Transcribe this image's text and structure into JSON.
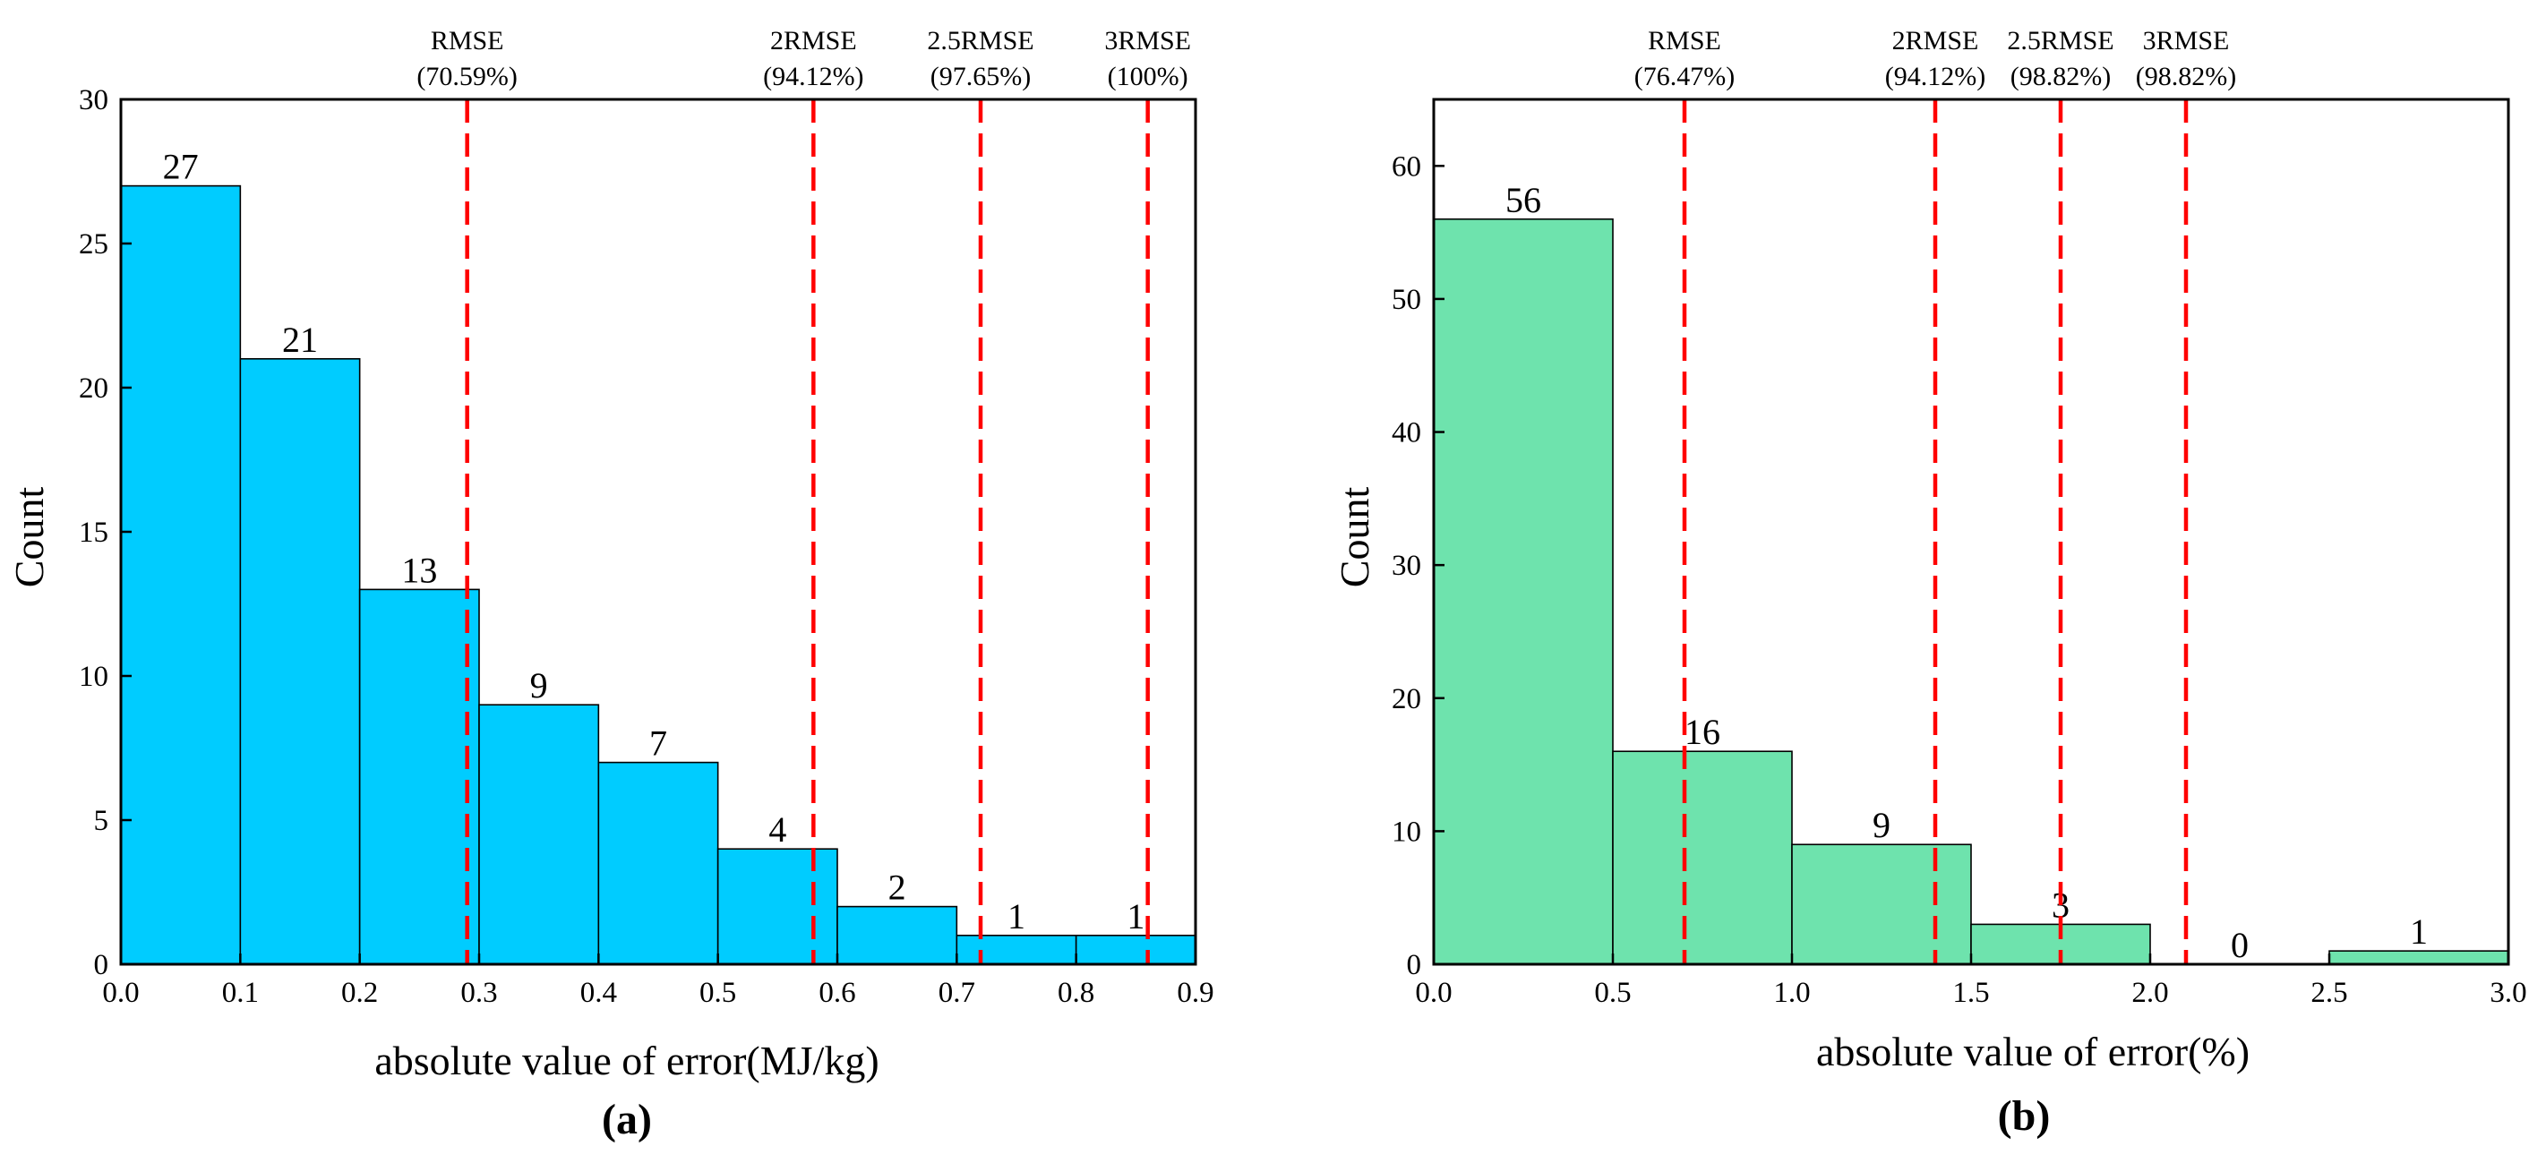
{
  "colors": {
    "bar_a": "#00ccff",
    "bar_b": "#6ee3ad",
    "rmse_line": "#ff0000",
    "axis": "#000000"
  },
  "chart_data": [
    {
      "type": "bar",
      "panel_label": "(a)",
      "title": "",
      "xlabel": "absolute value of error(MJ/kg)",
      "ylabel": "Count",
      "xlim": [
        0,
        0.9
      ],
      "ylim": [
        0,
        30
      ],
      "x_ticks": [
        "0.0",
        "0.1",
        "0.2",
        "0.3",
        "0.4",
        "0.5",
        "0.6",
        "0.7",
        "0.8",
        "0.9"
      ],
      "y_ticks": [
        "0",
        "5",
        "10",
        "15",
        "20",
        "25",
        "30"
      ],
      "bins": [
        {
          "start": 0.0,
          "end": 0.1,
          "count": 27
        },
        {
          "start": 0.1,
          "end": 0.2,
          "count": 21
        },
        {
          "start": 0.2,
          "end": 0.3,
          "count": 13
        },
        {
          "start": 0.3,
          "end": 0.4,
          "count": 9
        },
        {
          "start": 0.4,
          "end": 0.5,
          "count": 7
        },
        {
          "start": 0.5,
          "end": 0.6,
          "count": 4
        },
        {
          "start": 0.6,
          "end": 0.7,
          "count": 2
        },
        {
          "start": 0.7,
          "end": 0.8,
          "count": 1
        },
        {
          "start": 0.8,
          "end": 0.9,
          "count": 1
        }
      ],
      "reference_lines": [
        {
          "name": "RMSE",
          "pct": "(70.59%)",
          "x": 0.29
        },
        {
          "name": "2RMSE",
          "pct": "(94.12%)",
          "x": 0.58
        },
        {
          "name": "2.5RMSE",
          "pct": "(97.65%)",
          "x": 0.72
        },
        {
          "name": "3RMSE",
          "pct": "(100%)",
          "x": 0.86
        }
      ]
    },
    {
      "type": "bar",
      "panel_label": "(b)",
      "title": "",
      "xlabel": "absolute value of error(%)",
      "ylabel": "Count",
      "xlim": [
        0,
        3.0
      ],
      "ylim": [
        0,
        65
      ],
      "x_ticks": [
        "0.0",
        "0.5",
        "1.0",
        "1.5",
        "2.0",
        "2.5",
        "3.0"
      ],
      "y_ticks": [
        "0",
        "10",
        "20",
        "30",
        "40",
        "50",
        "60"
      ],
      "bins": [
        {
          "start": 0.0,
          "end": 0.5,
          "count": 56
        },
        {
          "start": 0.5,
          "end": 1.0,
          "count": 16
        },
        {
          "start": 1.0,
          "end": 1.5,
          "count": 9
        },
        {
          "start": 1.5,
          "end": 2.0,
          "count": 3
        },
        {
          "start": 2.0,
          "end": 2.5,
          "count": 0
        },
        {
          "start": 2.5,
          "end": 3.0,
          "count": 1
        }
      ],
      "reference_lines": [
        {
          "name": "RMSE",
          "pct": "(76.47%)",
          "x": 0.7
        },
        {
          "name": "2RMSE",
          "pct": "(94.12%)",
          "x": 1.4
        },
        {
          "name": "2.5RMSE",
          "pct": "(98.82%)",
          "x": 1.75
        },
        {
          "name": "3RMSE",
          "pct": "(98.82%)",
          "x": 2.1
        }
      ]
    }
  ]
}
